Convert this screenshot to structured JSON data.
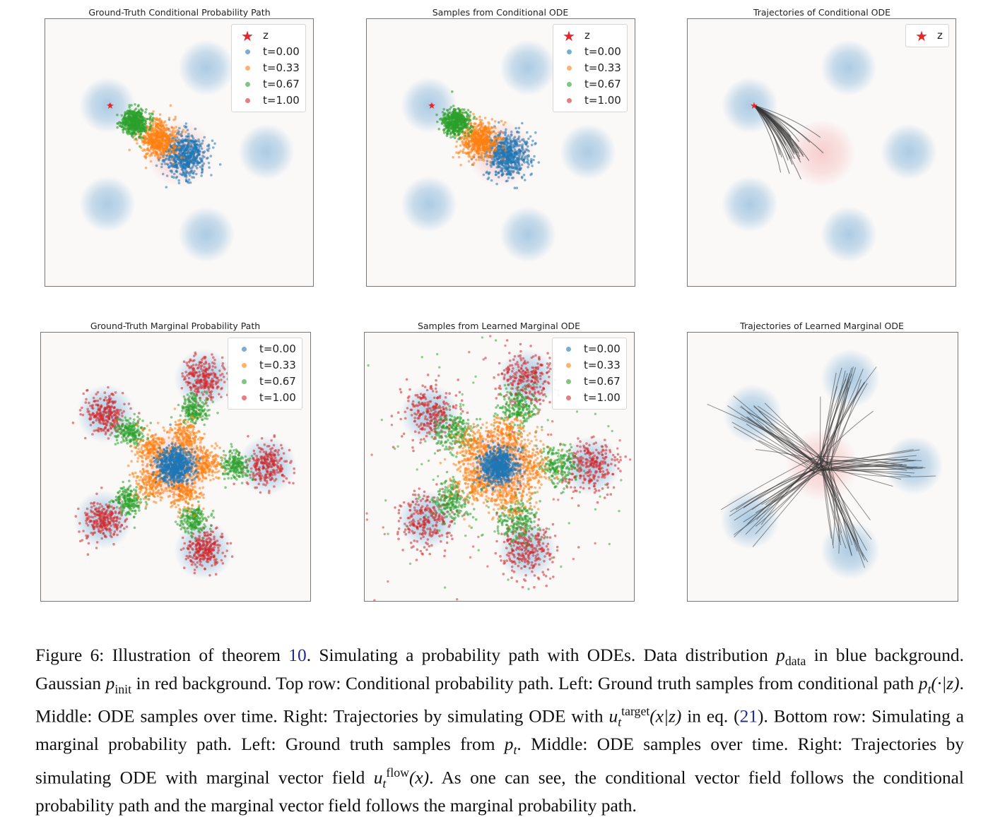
{
  "colors": {
    "t0": "#1f77b4",
    "t033": "#ff7f0e",
    "t067": "#2ca02c",
    "t1": "#d62728",
    "star": "#e8262b",
    "trajectory": "#333333",
    "data_blob": "#9ec3e0",
    "init_blob": "#f7c9c9"
  },
  "legend": {
    "z": "z",
    "t0": "t=0.00",
    "t1": "t=0.33",
    "t2": "t=0.67",
    "t3": "t=1.00"
  },
  "panels": [
    {
      "title": "Ground-Truth Conditional Probability Path"
    },
    {
      "title": "Samples from Conditional ODE"
    },
    {
      "title": "Trajectories of Conditional ODE"
    },
    {
      "title": "Ground-Truth Marginal Probability Path"
    },
    {
      "title": "Samples from Learned Marginal ODE"
    },
    {
      "title": "Trajectories of Learned Marginal ODE"
    }
  ],
  "caption": {
    "figure_label": "Figure 6:",
    "t1": "Illustration of theorem",
    "ref_theorem": "10",
    "t2": ". Simulating a probability path with ODEs. Data distribution",
    "p_data": "p",
    "p_data_sub": "data",
    "t3": "in blue background. Gaussian",
    "p_init": "p",
    "p_init_sub": "init",
    "t4": "in red background. Top row: Conditional probability path. Left: Ground truth samples from conditional path",
    "pt_cond": "p",
    "pt_cond_sub": "t",
    "pt_cond_arg": "(·|z)",
    "t5": ". Middle: ODE samples over time. Right: Trajectories by simulating ODE with",
    "u_target": "u",
    "u_target_sub": "t",
    "u_target_sup": "target",
    "u_target_arg": "(x|z)",
    "t6": "in eq. (",
    "ref_eq": "21",
    "t7": "). Bottom row: Simulating a marginal probability path. Left: Ground truth samples from",
    "pt": "p",
    "pt_sub": "t",
    "t8": ". Middle: ODE samples over time. Right: Trajectories by simulating ODE with marginal vector field",
    "u_flow": "u",
    "u_flow_sub": "t",
    "u_flow_sup": "flow",
    "u_flow_arg": "(x)",
    "t9": ". As one can see, the conditional vector field follows the conditional probability path and the marginal vector field follows the marginal probability path."
  }
}
